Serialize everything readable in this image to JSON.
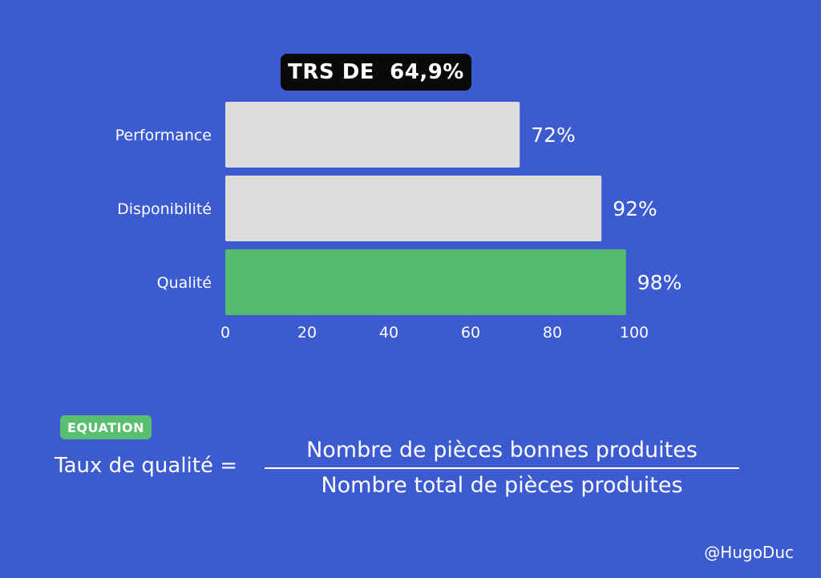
{
  "title": "TRS DE  64,9%",
  "chart_data": {
    "type": "bar",
    "orientation": "horizontal",
    "categories": [
      "Performance",
      "Disponibilité",
      "Qualité"
    ],
    "values": [
      72,
      92,
      98
    ],
    "value_labels": [
      "72%",
      "92%",
      "98%"
    ],
    "xlim": [
      0,
      100
    ],
    "xticks": [
      "0",
      "20",
      "40",
      "60",
      "80",
      "100"
    ],
    "xtick_values": [
      0,
      20,
      40,
      60,
      80,
      100
    ],
    "bar_colors": [
      "#dcdcdc",
      "#dcdcdc",
      "#55bb6d"
    ],
    "grid": false
  },
  "equation": {
    "badge": "EQUATION",
    "lhs": "Taux de qualité =",
    "numerator": "Nombre de pièces bonnes produites",
    "denominator": "Nombre total de pièces produites"
  },
  "credit": "@HugoDuc",
  "colors": {
    "background": "#3d5bd1",
    "title_badge": "#0a0a0a",
    "equation_badge": "#58bf6f",
    "text": "#ffffff"
  }
}
